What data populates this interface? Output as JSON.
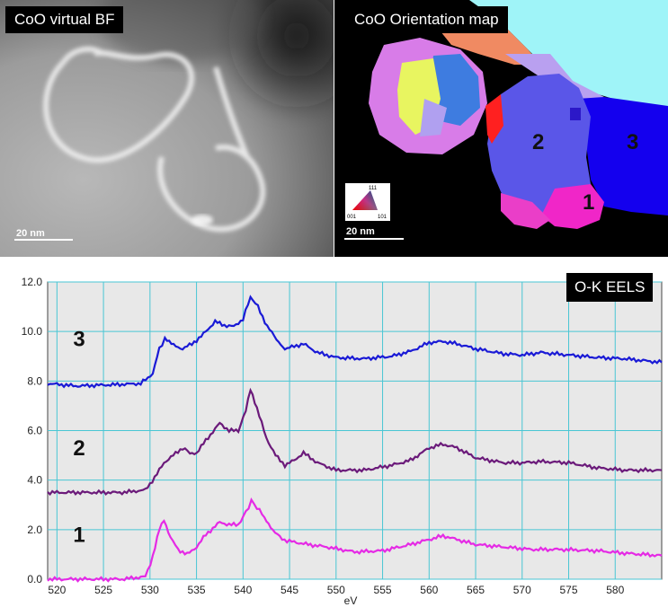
{
  "panels": {
    "bf": {
      "title": "CoO virtual BF",
      "scale_label": "20 nm"
    },
    "orientation": {
      "title": "CoO Orientation map",
      "scale_label": "20 nm",
      "grain_labels": [
        "1",
        "2",
        "3"
      ],
      "ipf_key": {
        "top": "111",
        "left": "001",
        "right": "101"
      }
    }
  },
  "chart_data": {
    "type": "line",
    "title": "O-K EELS",
    "xlabel": "eV",
    "ylabel": "",
    "xlim": [
      519,
      585
    ],
    "ylim": [
      0,
      12
    ],
    "x_ticks": [
      520,
      525,
      530,
      535,
      540,
      545,
      550,
      555,
      560,
      565,
      570,
      575,
      580
    ],
    "y_ticks": [
      "0.0",
      "2.0",
      "4.0",
      "6.0",
      "8.0",
      "10.0",
      "12.0"
    ],
    "grid": true,
    "series": [
      {
        "name": "3",
        "color": "#1a1ad6",
        "x": [
          519,
          522,
          526,
          529,
          530.3,
          531,
          531.6,
          532.3,
          533.5,
          534.5,
          535.5,
          537,
          538,
          539,
          540,
          540.8,
          541.6,
          542.6,
          543.6,
          544.5,
          545.5,
          546.5,
          548,
          550,
          553,
          556,
          558,
          560,
          561.5,
          563,
          565,
          568,
          570,
          572,
          575,
          578,
          581,
          585
        ],
        "y": [
          7.9,
          7.8,
          7.85,
          7.9,
          8.3,
          9.3,
          9.7,
          9.5,
          9.3,
          9.5,
          9.8,
          10.4,
          10.25,
          10.2,
          10.5,
          11.4,
          11.0,
          10.2,
          9.7,
          9.3,
          9.4,
          9.5,
          9.15,
          8.95,
          8.9,
          9.0,
          9.2,
          9.55,
          9.6,
          9.5,
          9.3,
          9.1,
          9.05,
          9.15,
          9.05,
          8.95,
          8.9,
          8.75
        ]
      },
      {
        "name": "2",
        "color": "#6b1a7a",
        "x": [
          519,
          523,
          527,
          529.5,
          530.5,
          531.5,
          532.5,
          533.5,
          534.3,
          535,
          536,
          537.5,
          538.5,
          539.5,
          540.3,
          540.8,
          541.5,
          542.5,
          543.5,
          544.5,
          545.5,
          546.5,
          548,
          550,
          553,
          556,
          558,
          560,
          561.5,
          563,
          565,
          568,
          570,
          572,
          575,
          578,
          581,
          585
        ],
        "y": [
          3.5,
          3.5,
          3.5,
          3.6,
          4.1,
          4.7,
          5.0,
          5.3,
          5.1,
          5.1,
          5.6,
          6.3,
          6.0,
          6.0,
          6.8,
          7.7,
          6.9,
          5.7,
          5.0,
          4.6,
          4.8,
          5.1,
          4.7,
          4.4,
          4.4,
          4.6,
          4.8,
          5.3,
          5.45,
          5.3,
          4.9,
          4.7,
          4.7,
          4.75,
          4.7,
          4.5,
          4.4,
          4.4
        ]
      },
      {
        "name": "1",
        "color": "#e52ae5",
        "x": [
          519,
          523,
          527,
          529.5,
          530.3,
          531,
          531.5,
          532.2,
          533,
          534,
          535,
          536,
          537.5,
          538.5,
          539.5,
          540.3,
          540.9,
          541.5,
          542.3,
          543.2,
          544.2,
          545.5,
          547,
          549,
          552,
          555,
          558,
          560,
          561.5,
          563,
          565,
          568,
          571,
          574,
          578,
          581,
          585
        ],
        "y": [
          0.0,
          0.0,
          0.0,
          0.1,
          0.9,
          2.0,
          2.4,
          1.7,
          1.2,
          1.0,
          1.3,
          1.8,
          2.3,
          2.2,
          2.2,
          2.7,
          3.15,
          2.9,
          2.5,
          2.0,
          1.6,
          1.5,
          1.4,
          1.3,
          1.1,
          1.15,
          1.4,
          1.6,
          1.75,
          1.6,
          1.4,
          1.3,
          1.2,
          1.2,
          1.15,
          1.05,
          0.95
        ]
      }
    ]
  }
}
